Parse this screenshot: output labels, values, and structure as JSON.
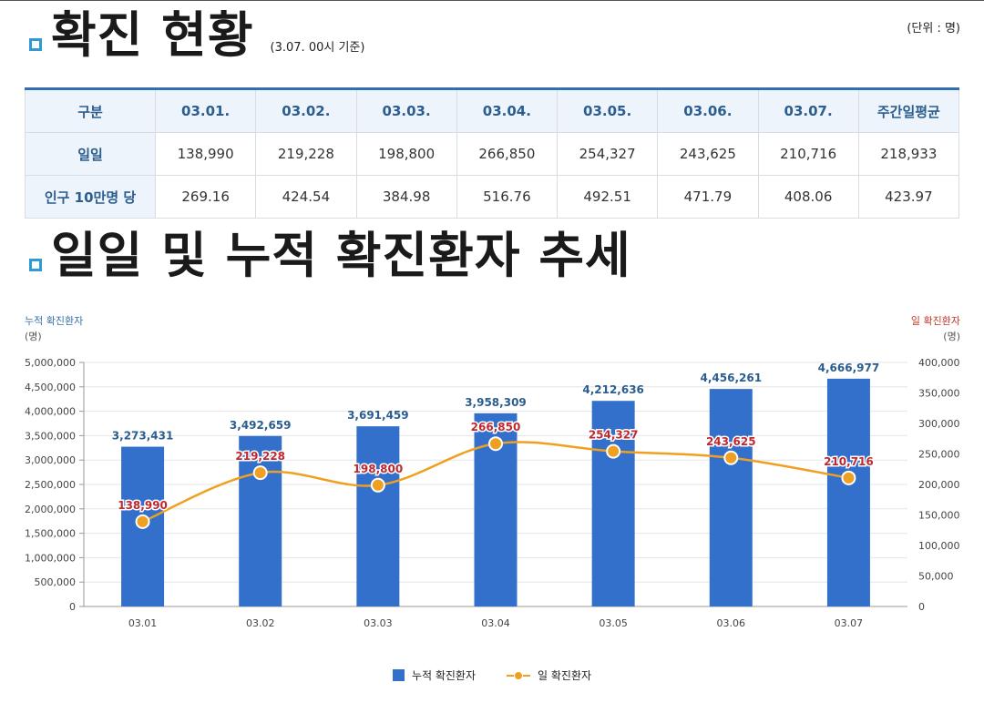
{
  "header": {
    "title": "확진 현황",
    "subtitle": "(3.07. 00시 기준)",
    "unit": "(단위 : 명)"
  },
  "table": {
    "columns": [
      "구분",
      "03.01.",
      "03.02.",
      "03.03.",
      "03.04.",
      "03.05.",
      "03.06.",
      "03.07.",
      "주간일평균"
    ],
    "rows": [
      {
        "label": "일일",
        "cells": [
          "138,990",
          "219,228",
          "198,800",
          "266,850",
          "254,327",
          "243,625",
          "210,716",
          "218,933"
        ]
      },
      {
        "label": "인구 10만명 당",
        "cells": [
          "269.16",
          "424.54",
          "384.98",
          "516.76",
          "492.51",
          "471.79",
          "408.06",
          "423.97"
        ]
      }
    ]
  },
  "chart_section": {
    "title": "일일 및 누적 확진환자 추세",
    "left_axis_title": "누적 확진환자",
    "left_axis_unit": "(명)",
    "right_axis_title": "일 확진환자",
    "right_axis_unit": "(명)"
  },
  "colors": {
    "bar": "#3370cc",
    "line": "#f0a020",
    "bar_label": "#2b5d8f",
    "line_label": "#c0282f",
    "left_axis_title": "#3a6fa8",
    "right_axis_title": "#c0392b",
    "title_marker": "#2f9ad6"
  },
  "chart_data": {
    "type": "bar+line",
    "categories": [
      "03.01",
      "03.02",
      "03.03",
      "03.04",
      "03.05",
      "03.06",
      "03.07"
    ],
    "series": [
      {
        "name": "누적 확진환자",
        "type": "bar",
        "axis": "left",
        "values": [
          3273431,
          3492659,
          3691459,
          3958309,
          4212636,
          4456261,
          4666977
        ],
        "labels": [
          "3,273,431",
          "3,492,659",
          "3,691,459",
          "3,958,309",
          "4,212,636",
          "4,456,261",
          "4,666,977"
        ]
      },
      {
        "name": "일 확진환자",
        "type": "line",
        "axis": "right",
        "values": [
          138990,
          219228,
          198800,
          266850,
          254327,
          243625,
          210716
        ],
        "labels": [
          "138,990",
          "219,228",
          "198,800",
          "266,850",
          "254,327",
          "243,625",
          "210,716"
        ]
      }
    ],
    "left_axis": {
      "min": 0,
      "max": 5000000,
      "step": 500000,
      "ticks": [
        "0",
        "500,000",
        "1,000,000",
        "1,500,000",
        "2,000,000",
        "2,500,000",
        "3,000,000",
        "3,500,000",
        "4,000,000",
        "4,500,000",
        "5,000,000"
      ]
    },
    "right_axis": {
      "min": 0,
      "max": 400000,
      "step": 50000,
      "ticks": [
        "0",
        "50,000",
        "100,000",
        "150,000",
        "200,000",
        "250,000",
        "300,000",
        "350,000",
        "400,000"
      ]
    },
    "grid": true,
    "legend": "bottom-center"
  }
}
